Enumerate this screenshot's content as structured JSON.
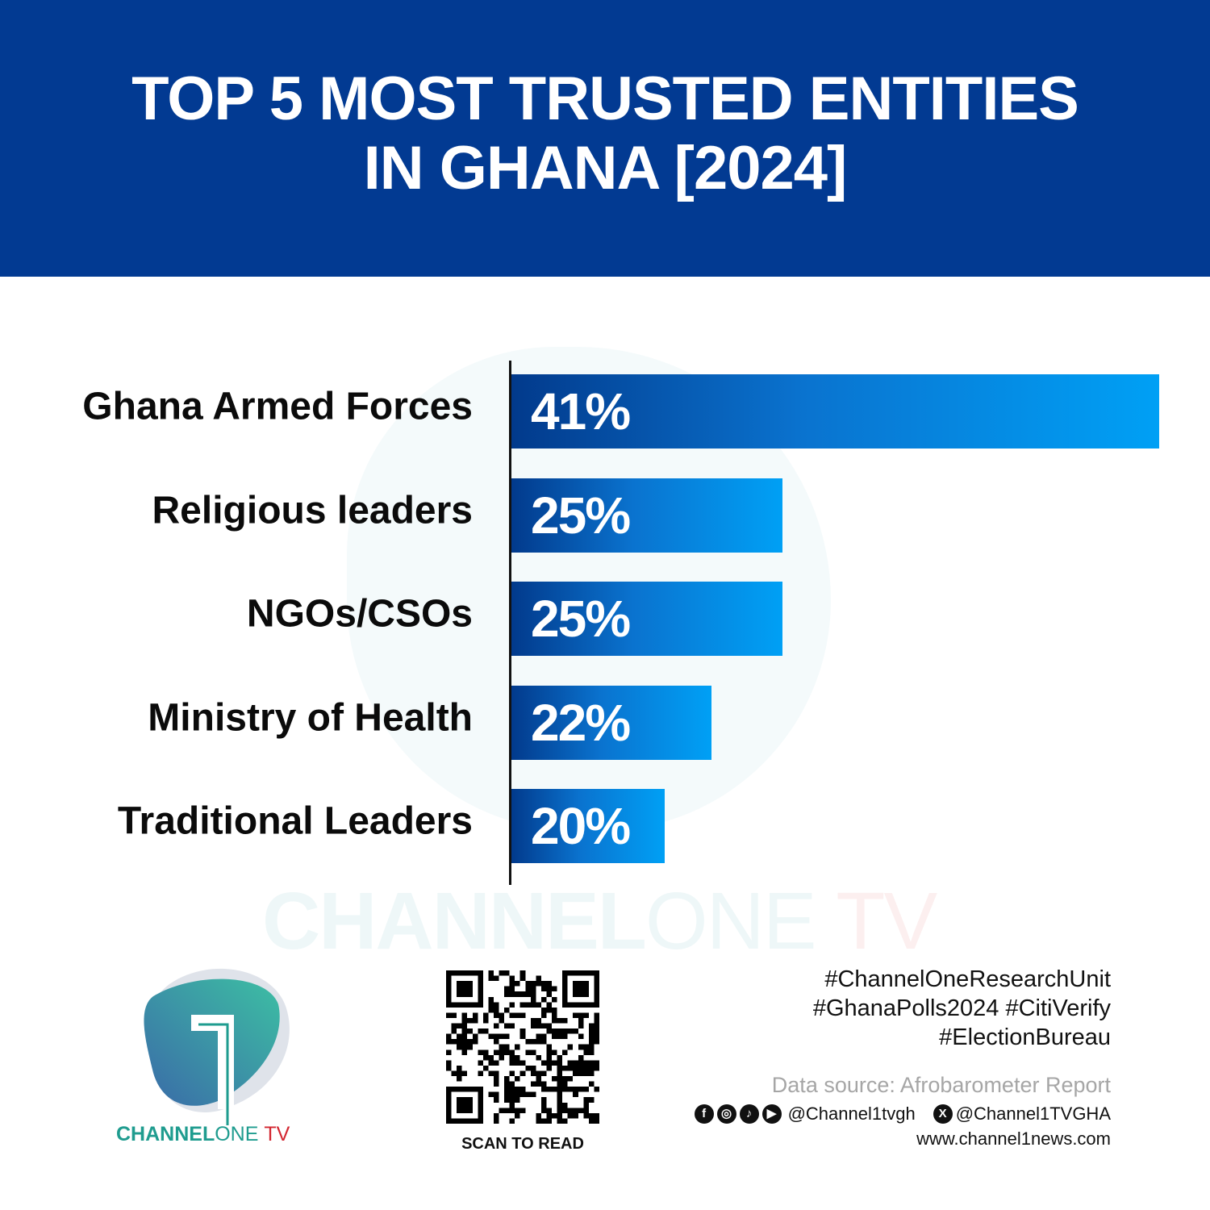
{
  "header": {
    "title_line1": "TOP 5 MOST TRUSTED ENTITIES",
    "title_line2": "IN GHANA [2024]",
    "background_color": "#023a92"
  },
  "chart_data": {
    "type": "bar",
    "orientation": "horizontal",
    "title": "TOP 5 MOST TRUSTED ENTITIES IN GHANA [2024]",
    "categories": [
      "Ghana Armed Forces",
      "Religious leaders",
      "NGOs/CSOs",
      "Ministry of Health",
      "Traditional Leaders"
    ],
    "values": [
      41,
      25,
      25,
      22,
      20
    ],
    "value_labels": [
      "41%",
      "25%",
      "25%",
      "22%",
      "20%"
    ],
    "unit": "%",
    "xlim": [
      13.5,
      41
    ],
    "grid": false,
    "bar_gradient": [
      "#023a8c",
      "#00a0f5"
    ]
  },
  "watermark": {
    "part1": "CHANNEL",
    "part2": "ONE",
    "part3": "TV"
  },
  "logo": {
    "part1": "CHANNEL",
    "part2": "ONE",
    "part3": "TV"
  },
  "qr": {
    "label": "SCAN TO READ"
  },
  "footer": {
    "tags": [
      "#ChannelOneResearchUnit",
      "#GhanaPolls2024 #CitiVerify",
      "#ElectionBureau"
    ],
    "source": "Data source: Afrobarometer Report",
    "social_icons": [
      "facebook-icon",
      "instagram-icon",
      "tiktok-icon",
      "youtube-icon"
    ],
    "handle1": "@Channel1tvgh",
    "handle2": "@Channel1TVGHA",
    "website": "www.channel1news.com"
  }
}
